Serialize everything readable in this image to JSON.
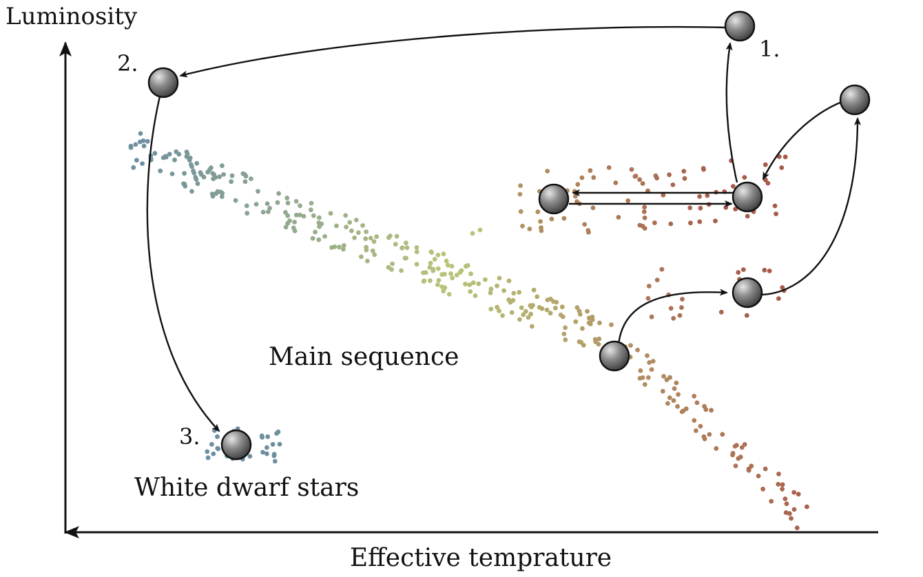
{
  "axes": {
    "y_label": "Luminosity",
    "x_label": "Effective temprature",
    "x_direction": "temperature increases to the left"
  },
  "regions": {
    "main_sequence_label": "Main sequence",
    "white_dwarf_label": "White dwarf stars"
  },
  "step_labels": [
    "1.",
    "2.",
    "3."
  ],
  "colors": {
    "cool_dots": "#a85a4a",
    "mid_dots": "#b8c47a",
    "hot_dots": "#6e8fa0",
    "star_fill": "#6b6b6b",
    "arrow": "#111111"
  },
  "stars": [
    {
      "id": "main-sequence-star"
    },
    {
      "id": "subgiant-star"
    },
    {
      "id": "red-giant-top-star"
    },
    {
      "id": "horizontal-branch-star"
    },
    {
      "id": "red-clump-star"
    },
    {
      "id": "agb-star-1"
    },
    {
      "id": "post-agb-star-2"
    },
    {
      "id": "white-dwarf-star-3"
    }
  ]
}
